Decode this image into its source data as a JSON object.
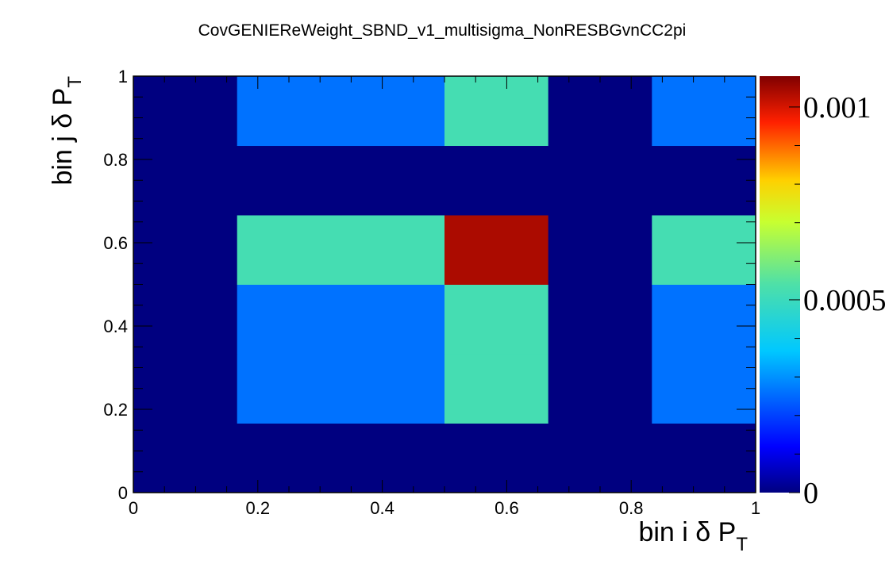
{
  "chart_data": {
    "type": "heatmap",
    "title": "CovGENIEReWeight_SBND_v1_multisigma_NonRESBGvnCC2pi",
    "xlabel": {
      "main": "bin i δ P",
      "sub": "T"
    },
    "ylabel": {
      "main": "bin j δ P",
      "sub": "T"
    },
    "xlim": [
      0,
      1
    ],
    "ylim": [
      0,
      1
    ],
    "x_edges": [
      0,
      0.1667,
      0.3333,
      0.5,
      0.6667,
      0.8333,
      1.0
    ],
    "y_edges": [
      0,
      0.1667,
      0.3333,
      0.5,
      0.6667,
      0.8333,
      1.0
    ],
    "x_ticks": [
      {
        "value": 0,
        "label": "0"
      },
      {
        "value": 0.2,
        "label": "0.2"
      },
      {
        "value": 0.4,
        "label": "0.4"
      },
      {
        "value": 0.6,
        "label": "0.6"
      },
      {
        "value": 0.8,
        "label": "0.8"
      },
      {
        "value": 1.0,
        "label": "1"
      }
    ],
    "y_ticks": [
      {
        "value": 0,
        "label": "0"
      },
      {
        "value": 0.2,
        "label": "0.2"
      },
      {
        "value": 0.4,
        "label": "0.4"
      },
      {
        "value": 0.6,
        "label": "0.6"
      },
      {
        "value": 0.8,
        "label": "0.8"
      },
      {
        "value": 1.0,
        "label": "1"
      }
    ],
    "z": [
      [
        0,
        0,
        0,
        0,
        0,
        0
      ],
      [
        0,
        0.00026,
        0.00026,
        0.00052,
        0,
        0.00026
      ],
      [
        0,
        0.00026,
        0.00026,
        0.00052,
        0,
        0.00026
      ],
      [
        0,
        0.00052,
        0.00052,
        0.00104,
        0,
        0.00052
      ],
      [
        0,
        0,
        0,
        0,
        0,
        0
      ],
      [
        0,
        0.00026,
        0.00026,
        0.00052,
        0,
        0.00026
      ]
    ],
    "zlim": [
      0,
      0.00108
    ],
    "colorbar": {
      "colormap": "jet",
      "ticks": [
        {
          "value": 0,
          "label": "0"
        },
        {
          "value": 0.0005,
          "label": "0.0005"
        },
        {
          "value": 0.001,
          "label": "0.001"
        }
      ]
    },
    "grid": false,
    "legend": "none"
  }
}
